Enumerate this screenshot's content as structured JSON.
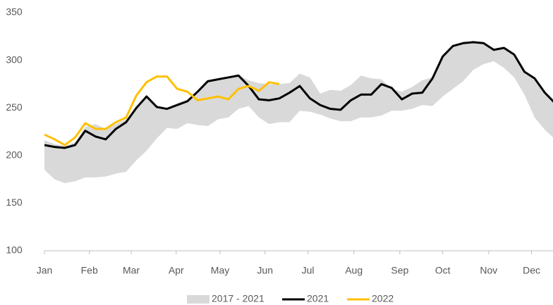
{
  "chart_data": {
    "type": "line",
    "x": [
      0,
      1,
      2,
      3,
      4,
      5,
      6,
      7,
      8,
      9,
      10,
      11,
      12,
      13,
      14,
      15,
      16,
      17,
      18,
      19,
      20,
      21,
      22,
      23,
      24,
      25,
      26,
      27,
      28,
      29,
      30,
      31,
      32,
      33,
      34,
      35,
      36,
      37,
      38,
      39,
      40,
      41,
      42,
      43,
      44,
      45,
      46,
      47,
      48,
      49,
      50
    ],
    "xlim": [
      0,
      49.8
    ],
    "xticks": [
      {
        "value": 0,
        "label": "Jan"
      },
      {
        "value": 4.4,
        "label": "Feb"
      },
      {
        "value": 8.5,
        "label": "Mar"
      },
      {
        "value": 12.9,
        "label": "Apr"
      },
      {
        "value": 17.2,
        "label": "May"
      },
      {
        "value": 21.6,
        "label": "Jun"
      },
      {
        "value": 25.8,
        "label": "Jul"
      },
      {
        "value": 30.3,
        "label": "Aug"
      },
      {
        "value": 34.8,
        "label": "Sep"
      },
      {
        "value": 39.0,
        "label": "Oct"
      },
      {
        "value": 43.5,
        "label": "Nov"
      },
      {
        "value": 47.7,
        "label": "Dec"
      }
    ],
    "ylim": [
      100,
      350
    ],
    "yticks": [
      100,
      150,
      200,
      250,
      300,
      350
    ],
    "legend": "bottom",
    "series": [
      {
        "name": "2017 - 2021",
        "color": "#d9d9d9",
        "kind": "band",
        "low": [
          185,
          175,
          171,
          173,
          177,
          177,
          178,
          181,
          183,
          195,
          205,
          218,
          229,
          228,
          234,
          232,
          231,
          238,
          240,
          249,
          252,
          240,
          233,
          235,
          235,
          247,
          246,
          243,
          239,
          236,
          236,
          240,
          240,
          242,
          247,
          247,
          249,
          253,
          252,
          262,
          270,
          278,
          290,
          296,
          299,
          292,
          282,
          264,
          240,
          227,
          217
        ],
        "high": [
          216,
          212,
          210,
          214,
          230,
          233,
          228,
          233,
          238,
          250,
          262,
          252,
          250,
          255,
          259,
          268,
          278,
          280,
          282,
          284,
          279,
          276,
          275,
          275,
          276,
          286,
          282,
          265,
          269,
          268,
          274,
          284,
          281,
          280,
          270,
          267,
          272,
          279,
          282,
          304,
          315,
          318,
          319,
          318,
          311,
          313,
          306,
          288,
          281,
          266,
          255
        ]
      },
      {
        "name": "2021",
        "color": "#000000",
        "values": [
          211,
          209,
          208,
          211,
          226,
          220,
          217,
          228,
          235,
          250,
          262,
          251,
          249,
          253,
          257,
          267,
          278,
          280,
          282,
          284,
          273,
          259,
          258,
          260,
          266,
          273,
          260,
          253,
          249,
          248,
          258,
          264,
          264,
          275,
          271,
          259,
          265,
          266,
          281,
          304,
          315,
          318,
          319,
          318,
          311,
          313,
          306,
          288,
          281,
          266,
          255
        ]
      },
      {
        "name": "2022",
        "color": "#ffc000",
        "values": [
          222,
          217,
          211,
          219,
          234,
          228,
          228,
          235,
          240,
          263,
          277,
          283,
          283,
          270,
          267,
          258,
          260,
          262,
          259,
          270,
          273,
          268,
          277,
          275,
          null,
          null,
          null,
          null,
          null,
          null,
          null,
          null,
          null,
          null,
          null,
          null,
          null,
          null,
          null,
          null,
          null,
          null,
          null,
          null,
          null,
          null,
          null,
          null,
          null,
          null,
          null
        ]
      }
    ]
  }
}
